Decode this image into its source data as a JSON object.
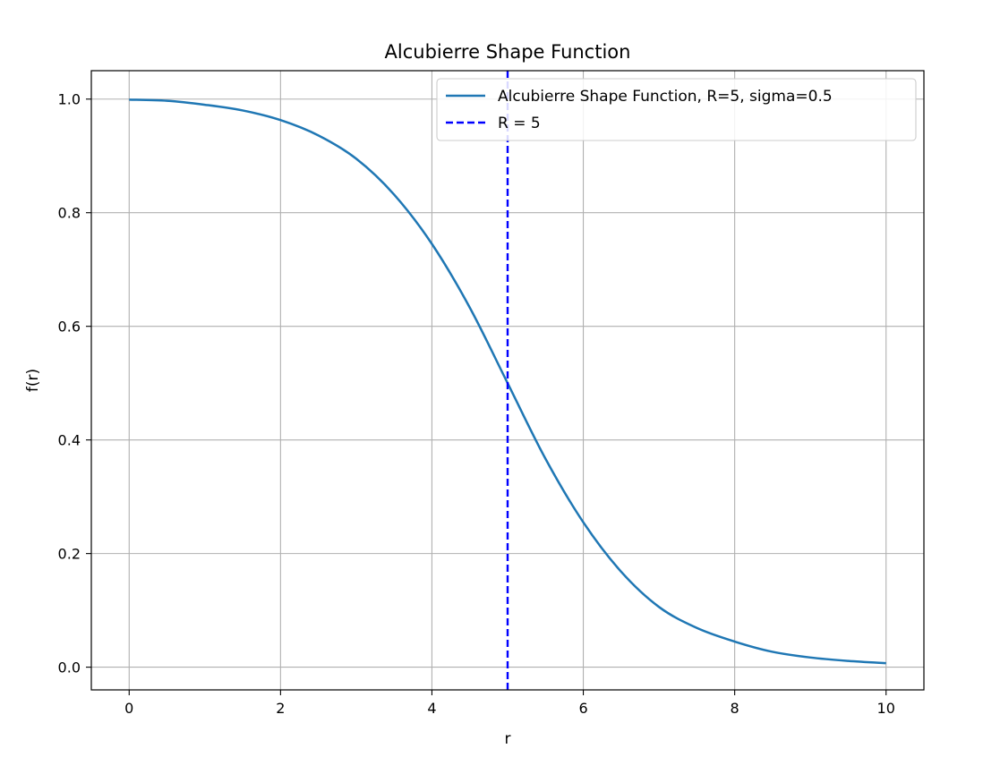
{
  "chart_data": {
    "type": "line",
    "title": "Alcubierre Shape Function",
    "xlabel": "r",
    "ylabel": "f(r)",
    "xlim": [
      -0.5,
      10.5
    ],
    "ylim": [
      -0.04,
      1.05
    ],
    "xticks": [
      0,
      2,
      4,
      6,
      8,
      10
    ],
    "xtick_labels": [
      "0",
      "2",
      "4",
      "6",
      "8",
      "10"
    ],
    "yticks": [
      0.0,
      0.2,
      0.4,
      0.6,
      0.8,
      1.0
    ],
    "ytick_labels": [
      "0.0",
      "0.2",
      "0.4",
      "0.6",
      "0.8",
      "1.0"
    ],
    "grid": true,
    "legend_position": "top-right",
    "series": [
      {
        "name": "Alcubierre Shape Function, R=5, sigma=0.5",
        "color": "#1f77b4",
        "style": "solid",
        "x": [
          0,
          0.5,
          1,
          1.5,
          2,
          2.5,
          3,
          3.5,
          4,
          4.5,
          5,
          5.5,
          6,
          6.5,
          7,
          7.5,
          8,
          8.5,
          9,
          9.5,
          10
        ],
        "y": [
          0.999,
          0.997,
          0.99,
          0.98,
          0.963,
          0.936,
          0.895,
          0.832,
          0.745,
          0.633,
          0.5,
          0.367,
          0.255,
          0.168,
          0.106,
          0.069,
          0.045,
          0.027,
          0.017,
          0.011,
          0.007
        ]
      },
      {
        "name": "R = 5",
        "color": "#0000ff",
        "style": "dashed",
        "vline_x": 5
      }
    ]
  }
}
